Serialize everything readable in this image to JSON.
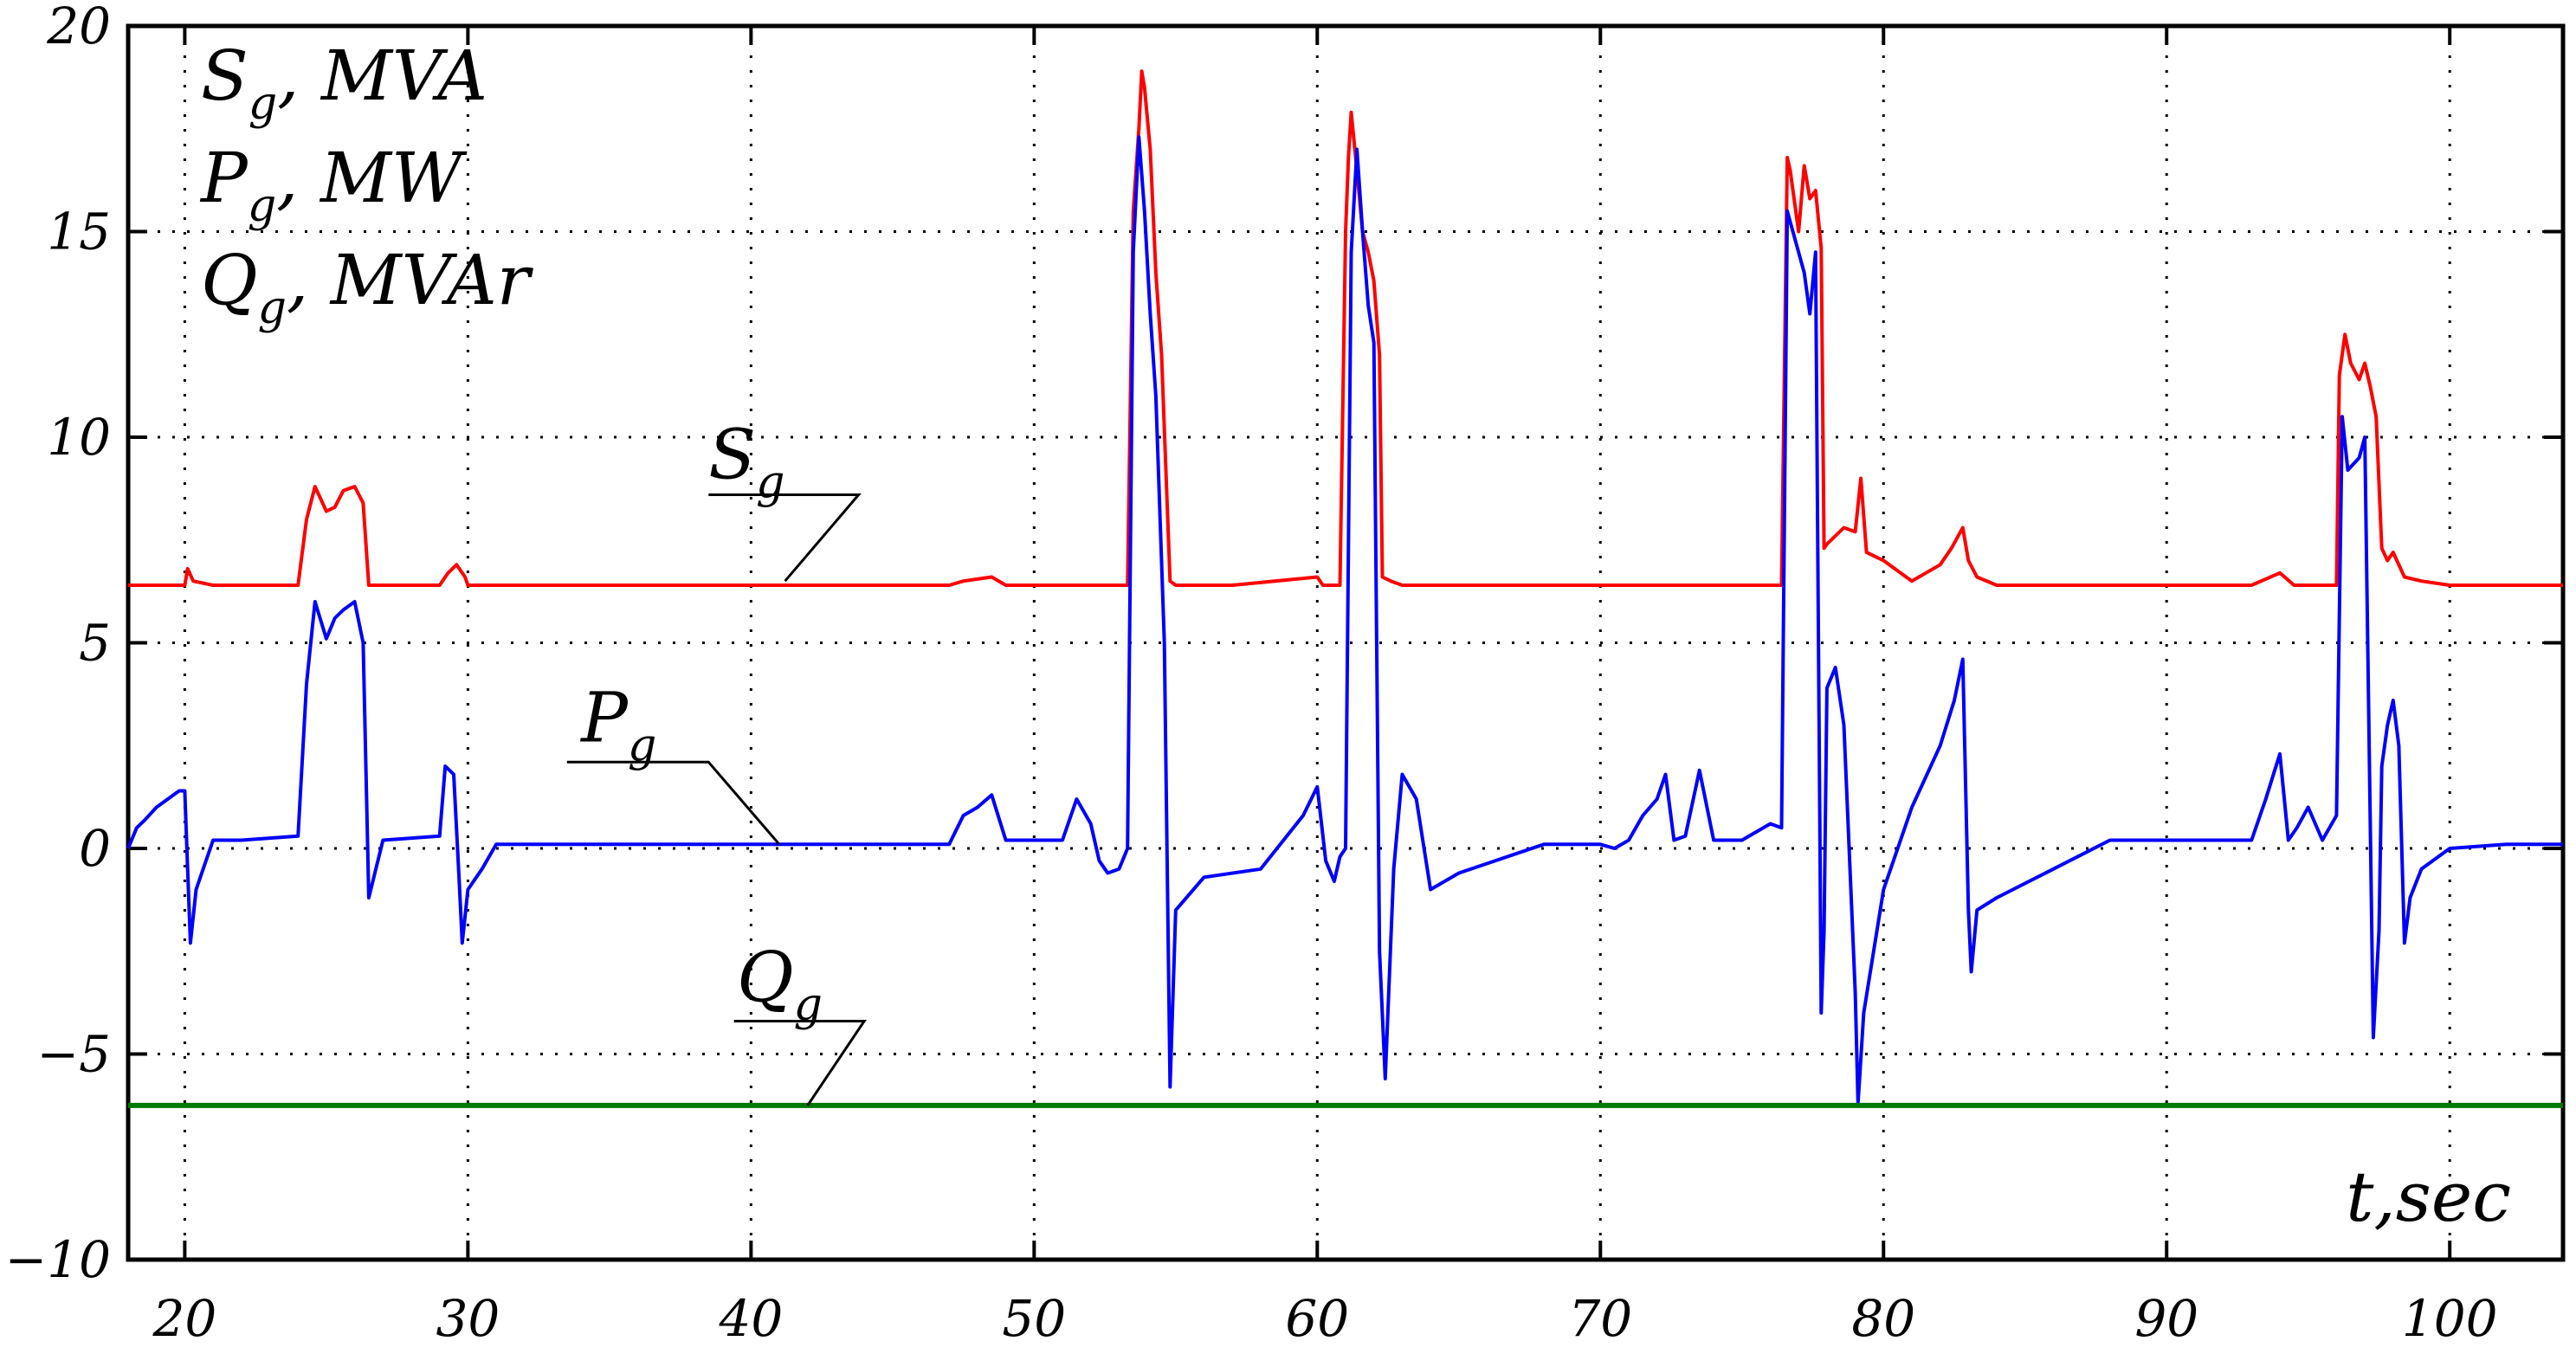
{
  "chart_data": {
    "type": "line",
    "title": "",
    "xlabel": "t,sec",
    "ylabel_lines": [
      {
        "main": "S",
        "sub": "g",
        "unit": ", MVA"
      },
      {
        "main": "P",
        "sub": "g",
        "unit": ", MW"
      },
      {
        "main": "Q",
        "sub": "g",
        "unit": ", MVAr"
      }
    ],
    "xlim": [
      18,
      104
    ],
    "ylim": [
      -10,
      20
    ],
    "xticks": [
      20,
      30,
      40,
      50,
      60,
      70,
      80,
      90,
      100
    ],
    "yticks": [
      20,
      15,
      10,
      5,
      0,
      -5,
      -10
    ],
    "ytick_labels": [
      "20",
      "15",
      "10",
      "5",
      "0",
      "−5",
      "−10"
    ],
    "grid": true,
    "series": [
      {
        "name": "S",
        "sub": "g",
        "color": "#ff0000",
        "x": [
          18,
          20,
          20.1,
          20.3,
          21,
          24,
          24.3,
          24.6,
          25,
          25.3,
          25.6,
          26,
          26.3,
          26.5,
          29,
          29.3,
          29.6,
          29.9,
          30,
          31,
          35,
          40,
          45,
          47,
          47.5,
          48.5,
          49,
          50,
          52,
          53,
          53.3,
          53.5,
          53.7,
          53.8,
          53.9,
          54.1,
          54.3,
          54.5,
          54.8,
          55,
          57,
          60,
          60.2,
          60.8,
          61,
          61.1,
          61.2,
          61.4,
          61.6,
          61.8,
          62,
          62.2,
          62.3,
          62.6,
          63,
          65,
          70,
          75,
          76.4,
          76.6,
          76.7,
          77,
          77.2,
          77.4,
          77.6,
          77.8,
          77.9,
          78,
          78.3,
          78.6,
          79,
          79.2,
          79.4,
          80,
          81,
          82,
          82.4,
          82.8,
          83,
          83.3,
          84,
          90,
          93,
          94,
          94.5,
          96,
          96.1,
          96.3,
          96.5,
          96.8,
          97,
          97.2,
          97.4,
          97.6,
          97.8,
          98,
          98.4,
          99,
          100,
          104
        ],
        "y": [
          6.4,
          6.4,
          6.8,
          6.5,
          6.4,
          6.4,
          8.0,
          8.8,
          8.2,
          8.3,
          8.7,
          8.8,
          8.4,
          6.4,
          6.4,
          6.7,
          6.9,
          6.6,
          6.4,
          6.4,
          6.4,
          6.4,
          6.4,
          6.4,
          6.5,
          6.6,
          6.4,
          6.4,
          6.4,
          6.4,
          6.4,
          15.5,
          17.5,
          18.9,
          18.5,
          17.0,
          14.0,
          12.0,
          6.5,
          6.4,
          6.4,
          6.6,
          6.4,
          6.4,
          15.0,
          16.8,
          17.9,
          16.5,
          15.0,
          14.5,
          13.8,
          12.0,
          6.6,
          6.5,
          6.4,
          6.4,
          6.4,
          6.4,
          6.4,
          16.8,
          16.5,
          15.0,
          16.6,
          15.8,
          16.0,
          14.6,
          7.3,
          7.4,
          7.6,
          7.8,
          7.7,
          9.0,
          7.2,
          7.0,
          6.5,
          6.9,
          7.3,
          7.8,
          7.0,
          6.6,
          6.4,
          6.4,
          6.4,
          6.7,
          6.4,
          6.4,
          11.5,
          12.5,
          11.8,
          11.4,
          11.8,
          11.2,
          10.5,
          7.3,
          7.0,
          7.2,
          6.6,
          6.5,
          6.4,
          6.4
        ]
      },
      {
        "name": "P",
        "sub": "g",
        "color": "#0000ff",
        "x": [
          18,
          18.3,
          18.6,
          19,
          19.4,
          19.8,
          20,
          20.1,
          20.2,
          20.4,
          20.6,
          21,
          22,
          24,
          24.3,
          24.6,
          25,
          25.3,
          25.6,
          26,
          26.3,
          26.5,
          27,
          29,
          29.2,
          29.5,
          29.7,
          29.8,
          30,
          30.5,
          31,
          32,
          35,
          40,
          45,
          47,
          47.5,
          48,
          48.5,
          49,
          50,
          51,
          51.5,
          52,
          52.3,
          52.6,
          53,
          53.3,
          53.5,
          53.7,
          53.9,
          54.1,
          54.3,
          54.6,
          54.8,
          55,
          56,
          58,
          59.5,
          60,
          60.3,
          60.6,
          60.8,
          61,
          61.2,
          61.4,
          61.6,
          61.8,
          62,
          62.2,
          62.4,
          62.7,
          63,
          63.5,
          64,
          65,
          68,
          70,
          70.5,
          71,
          71.5,
          72,
          72.3,
          72.6,
          73,
          73.5,
          74,
          75,
          76,
          76.4,
          76.6,
          76.8,
          77.2,
          77.4,
          77.6,
          77.8,
          77.9,
          78,
          78.3,
          78.6,
          79,
          79.1,
          79.3,
          80,
          81,
          82,
          82.5,
          82.8,
          83,
          83.1,
          83.3,
          84,
          86,
          88,
          90,
          92,
          93,
          93.5,
          94,
          94.3,
          94.6,
          95,
          95.5,
          96,
          96.2,
          96.4,
          96.8,
          97,
          97.3,
          97.5,
          97.6,
          97.8,
          98,
          98.2,
          98.4,
          98.6,
          99,
          100,
          102,
          104
        ],
        "y": [
          0,
          0.5,
          0.7,
          1.0,
          1.2,
          1.4,
          1.4,
          -0.5,
          -2.3,
          -1.0,
          -0.6,
          0.2,
          0.2,
          0.3,
          4.0,
          6.0,
          5.1,
          5.6,
          5.8,
          6.0,
          5.0,
          -1.2,
          0.2,
          0.3,
          2.0,
          1.8,
          -0.9,
          -2.3,
          -1.0,
          -0.5,
          0.1,
          0.1,
          0.1,
          0.1,
          0.1,
          0.1,
          0.8,
          1.0,
          1.3,
          0.2,
          0.2,
          0.2,
          1.2,
          0.6,
          -0.3,
          -0.6,
          -0.5,
          0,
          14.5,
          17.3,
          15.5,
          13.0,
          11.0,
          5.0,
          -5.8,
          -1.5,
          -0.7,
          -0.5,
          0.8,
          1.5,
          -0.3,
          -0.8,
          -0.2,
          0,
          14.5,
          17.0,
          15.0,
          13.2,
          12.3,
          -2.5,
          -5.6,
          -0.5,
          1.8,
          1.2,
          -1.0,
          -0.6,
          0.1,
          0.1,
          0,
          0.2,
          0.8,
          1.2,
          1.8,
          0.2,
          0.3,
          1.9,
          0.2,
          0.2,
          0.6,
          0.5,
          15.5,
          15.0,
          14.0,
          13.0,
          14.5,
          -4.0,
          -2.0,
          3.9,
          4.4,
          3.0,
          -3.5,
          -6.2,
          -4.0,
          -1.0,
          1.0,
          2.5,
          3.6,
          4.6,
          -1.5,
          -3.0,
          -1.5,
          -1.2,
          -0.5,
          0.2,
          0.2,
          0.2,
          0.2,
          1.2,
          2.3,
          0.2,
          0.5,
          1.0,
          0.2,
          0.8,
          10.5,
          9.2,
          9.5,
          10.0,
          -4.6,
          -2.0,
          2.0,
          3.0,
          3.6,
          2.5,
          -2.3,
          -1.2,
          -0.5,
          0,
          0.1,
          0.1
        ]
      },
      {
        "name": "Q",
        "sub": "g",
        "color": "#007a00",
        "x": [
          18,
          104
        ],
        "y": [
          -6.25,
          -6.25
        ]
      }
    ],
    "annotations": [
      {
        "name": "S",
        "sub": "g",
        "text_x": 20.5,
        "text_y": 9.0,
        "line_from": [
          20.5,
          8.6
        ],
        "bend_x": 25.8,
        "line_to": [
          41.2,
          6.5
        ]
      },
      {
        "name": "P",
        "sub": "g",
        "text_x": 16.0,
        "text_y": 2.6,
        "line_from": [
          15.5,
          2.1
        ],
        "bend_x": 20.5,
        "line_to": [
          41.0,
          0.1
        ]
      },
      {
        "name": "Q",
        "sub": "g",
        "text_x": 21.5,
        "text_y": -3.7,
        "line_from": [
          21.4,
          -4.2
        ],
        "bend_x": 26.0,
        "line_to": [
          42.0,
          -6.25
        ]
      }
    ]
  }
}
